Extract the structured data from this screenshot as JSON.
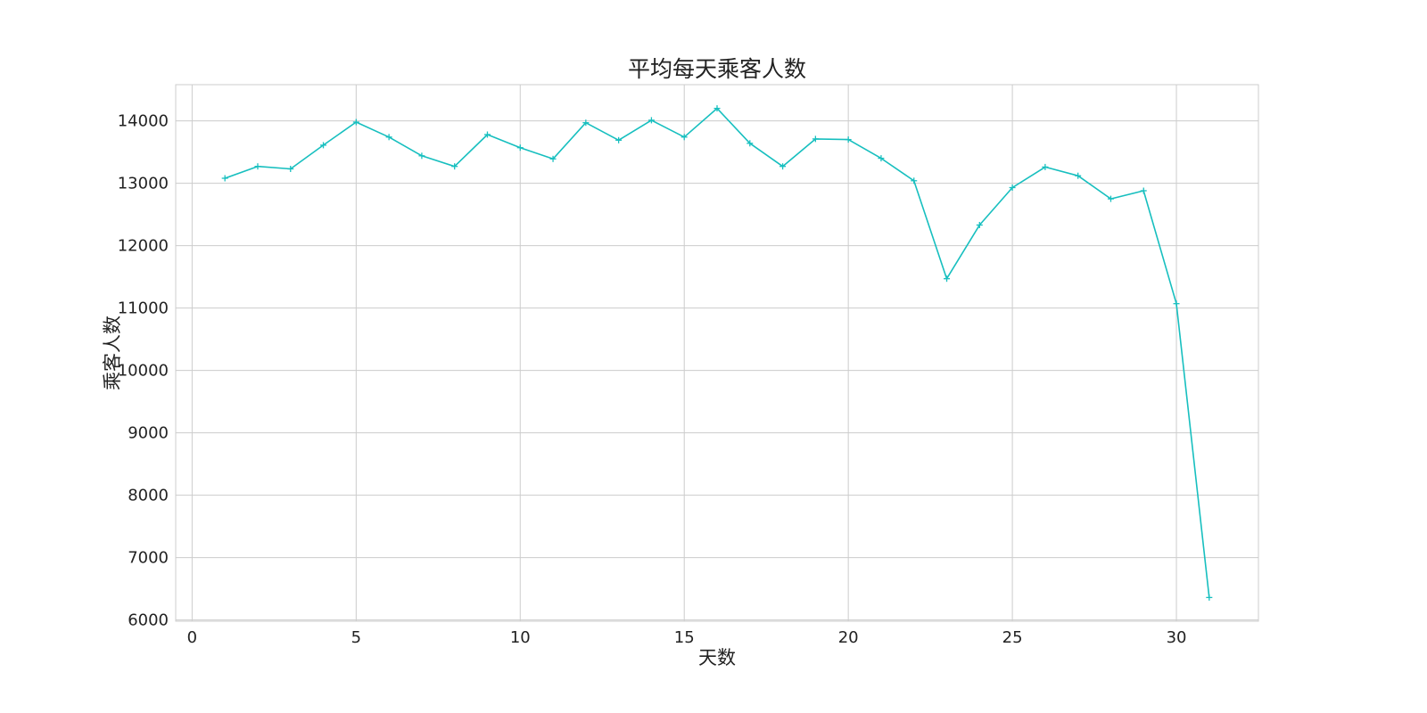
{
  "chart_data": {
    "type": "line",
    "title": "平均每天乘客人数",
    "xlabel": "天数",
    "ylabel": "乘客人数",
    "xlim": [
      -0.5,
      32.5
    ],
    "ylim": [
      5980,
      14580
    ],
    "xticks": [
      0,
      5,
      10,
      15,
      20,
      25,
      30
    ],
    "yticks": [
      6000,
      7000,
      8000,
      9000,
      10000,
      11000,
      12000,
      13000,
      14000
    ],
    "grid": true,
    "legend": "none",
    "series": [
      {
        "color": "#17bfbf",
        "marker": "plus",
        "x": [
          1,
          2,
          3,
          4,
          5,
          6,
          7,
          8,
          9,
          10,
          11,
          12,
          13,
          14,
          15,
          16,
          17,
          18,
          19,
          20,
          21,
          22,
          23,
          24,
          25,
          26,
          27,
          28,
          29,
          30,
          31
        ],
        "y": [
          13080,
          13270,
          13230,
          13610,
          13980,
          13740,
          13440,
          13270,
          13780,
          13570,
          13390,
          13970,
          13690,
          14010,
          13740,
          14200,
          13640,
          13270,
          13710,
          13700,
          13400,
          13040,
          11470,
          12330,
          12930,
          13260,
          13120,
          12750,
          12880,
          11070,
          6360
        ]
      }
    ]
  }
}
